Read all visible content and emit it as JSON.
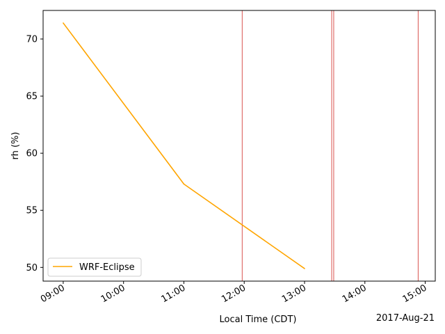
{
  "chart_data": {
    "type": "line",
    "xlabel": "Local Time (CDT)",
    "ylabel": "rh (%)",
    "date_label": "2017-Aug-21",
    "xlim": [
      "08:40",
      "15:10"
    ],
    "ylim": [
      48.8,
      72.5
    ],
    "x_ticks": [
      "09:00",
      "10:00",
      "11:00",
      "12:00",
      "13:00",
      "14:00",
      "15:00"
    ],
    "y_ticks": [
      50,
      55,
      60,
      65,
      70
    ],
    "series": [
      {
        "name": "WRF-Eclipse",
        "color": "#ffa500",
        "x": [
          "09:00",
          "11:00",
          "13:00"
        ],
        "y": [
          71.4,
          57.3,
          49.9
        ]
      }
    ],
    "vertical_lines": {
      "color": "#d9534f",
      "x": [
        "11:58",
        "13:27",
        "13:29",
        "14:53"
      ]
    },
    "legend": {
      "placement": "lower-left"
    },
    "grid": false
  }
}
